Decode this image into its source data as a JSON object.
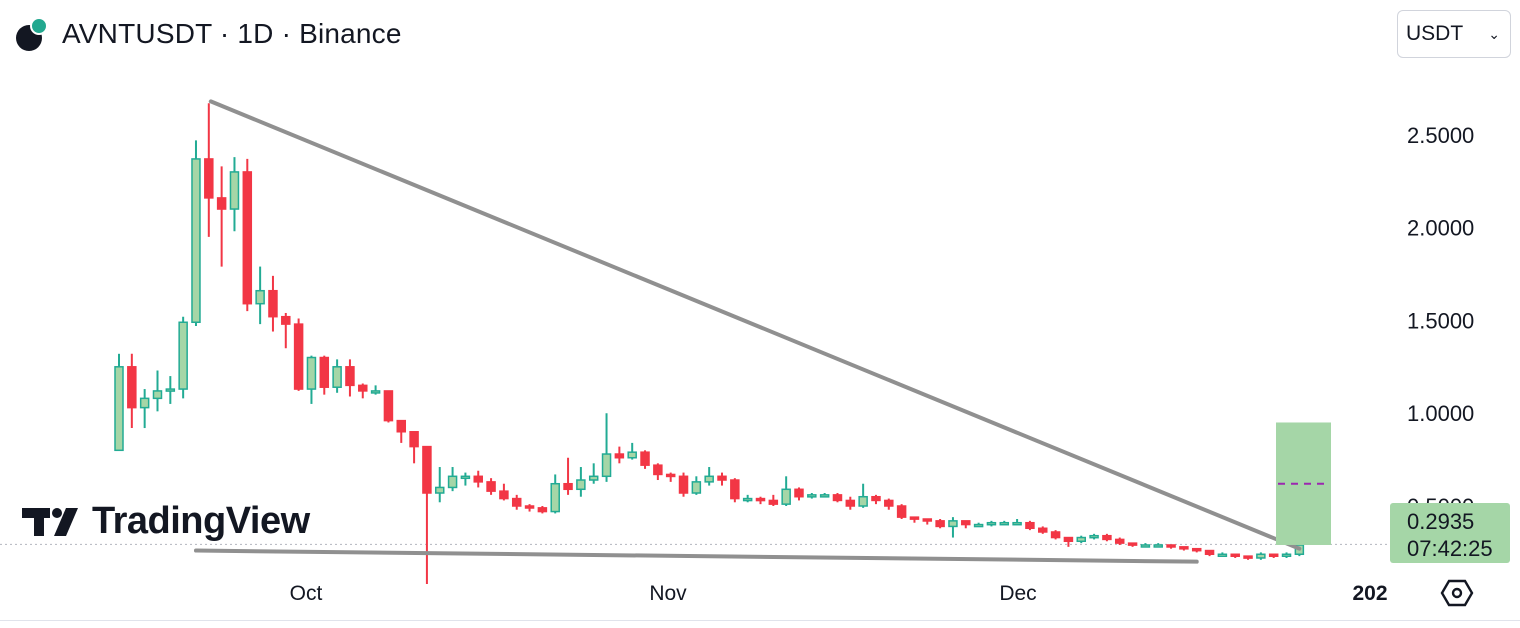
{
  "header": {
    "title": "AVNTUSDT · 1D · Binance",
    "currency": "USDT"
  },
  "branding": {
    "logo_text": "TradingView"
  },
  "price_badge": {
    "price": "0.2935",
    "countdown": "07:42:25"
  },
  "colors": {
    "up": "#22ab94",
    "up_fill": "#a5d6a7",
    "down": "#f23645",
    "trendline": "#909090"
  },
  "icons": {
    "settings": "gear-hex-icon",
    "dropdown": "chevron-down-icon"
  },
  "chart_data": {
    "type": "candlestick",
    "symbol": "AVNTUSDT",
    "interval": "1D",
    "exchange": "Binance",
    "y_ticks": [
      "2.5000",
      "2.0000",
      "1.5000",
      "1.0000",
      "0.5000"
    ],
    "x_ticks": [
      "Oct",
      "Nov",
      "Dec",
      "202"
    ],
    "ylim": [
      0,
      2.85
    ],
    "current_price": 0.2935,
    "candles": [
      [
        0.8,
        1.25,
        0.8,
        1.32
      ],
      [
        1.25,
        1.03,
        0.92,
        1.32
      ],
      [
        1.03,
        1.08,
        0.92,
        1.13
      ],
      [
        1.08,
        1.12,
        1.01,
        1.23
      ],
      [
        1.12,
        1.13,
        1.05,
        1.2
      ],
      [
        1.13,
        1.49,
        1.08,
        1.52
      ],
      [
        1.49,
        2.37,
        1.47,
        2.47
      ],
      [
        2.37,
        2.16,
        1.95,
        2.67
      ],
      [
        2.16,
        2.1,
        1.79,
        2.33
      ],
      [
        2.1,
        2.3,
        1.98,
        2.38
      ],
      [
        2.3,
        1.59,
        1.55,
        2.37
      ],
      [
        1.59,
        1.66,
        1.48,
        1.79
      ],
      [
        1.66,
        1.52,
        1.44,
        1.74
      ],
      [
        1.52,
        1.48,
        1.35,
        1.54
      ],
      [
        1.48,
        1.13,
        1.12,
        1.51
      ],
      [
        1.13,
        1.3,
        1.05,
        1.31
      ],
      [
        1.3,
        1.14,
        1.1,
        1.31
      ],
      [
        1.14,
        1.25,
        1.11,
        1.29
      ],
      [
        1.25,
        1.15,
        1.09,
        1.29
      ],
      [
        1.15,
        1.12,
        1.08,
        1.16
      ],
      [
        1.12,
        1.12,
        1.1,
        1.15
      ],
      [
        1.12,
        0.96,
        0.95,
        1.12
      ],
      [
        0.96,
        0.9,
        0.84,
        0.96
      ],
      [
        0.9,
        0.82,
        0.73,
        0.9
      ],
      [
        0.82,
        0.57,
        0.08,
        0.82
      ],
      [
        0.57,
        0.6,
        0.52,
        0.71
      ],
      [
        0.6,
        0.66,
        0.58,
        0.71
      ],
      [
        0.66,
        0.66,
        0.61,
        0.68
      ],
      [
        0.66,
        0.63,
        0.6,
        0.69
      ],
      [
        0.63,
        0.58,
        0.56,
        0.65
      ],
      [
        0.58,
        0.54,
        0.53,
        0.62
      ],
      [
        0.54,
        0.5,
        0.48,
        0.56
      ],
      [
        0.5,
        0.49,
        0.47,
        0.51
      ],
      [
        0.49,
        0.47,
        0.46,
        0.5
      ],
      [
        0.47,
        0.62,
        0.46,
        0.67
      ],
      [
        0.62,
        0.59,
        0.56,
        0.76
      ],
      [
        0.59,
        0.64,
        0.55,
        0.71
      ],
      [
        0.64,
        0.66,
        0.62,
        0.73
      ],
      [
        0.66,
        0.78,
        0.63,
        1.0
      ],
      [
        0.78,
        0.76,
        0.73,
        0.82
      ],
      [
        0.76,
        0.79,
        0.75,
        0.84
      ],
      [
        0.79,
        0.72,
        0.7,
        0.8
      ],
      [
        0.72,
        0.67,
        0.64,
        0.73
      ],
      [
        0.67,
        0.66,
        0.63,
        0.68
      ],
      [
        0.66,
        0.57,
        0.55,
        0.68
      ],
      [
        0.57,
        0.63,
        0.56,
        0.66
      ],
      [
        0.63,
        0.66,
        0.61,
        0.71
      ],
      [
        0.66,
        0.64,
        0.61,
        0.68
      ],
      [
        0.64,
        0.54,
        0.52,
        0.65
      ],
      [
        0.54,
        0.54,
        0.52,
        0.56
      ],
      [
        0.54,
        0.53,
        0.51,
        0.55
      ],
      [
        0.53,
        0.51,
        0.5,
        0.56
      ],
      [
        0.51,
        0.59,
        0.5,
        0.66
      ],
      [
        0.59,
        0.55,
        0.53,
        0.6
      ],
      [
        0.55,
        0.56,
        0.54,
        0.57
      ],
      [
        0.56,
        0.56,
        0.55,
        0.57
      ],
      [
        0.56,
        0.53,
        0.52,
        0.57
      ],
      [
        0.53,
        0.5,
        0.48,
        0.55
      ],
      [
        0.5,
        0.55,
        0.49,
        0.62
      ],
      [
        0.55,
        0.53,
        0.51,
        0.56
      ],
      [
        0.53,
        0.5,
        0.48,
        0.54
      ],
      [
        0.5,
        0.44,
        0.43,
        0.51
      ],
      [
        0.44,
        0.43,
        0.41,
        0.44
      ],
      [
        0.43,
        0.42,
        0.4,
        0.43
      ],
      [
        0.42,
        0.39,
        0.38,
        0.43
      ],
      [
        0.39,
        0.42,
        0.33,
        0.44
      ],
      [
        0.42,
        0.4,
        0.38,
        0.42
      ],
      [
        0.4,
        0.4,
        0.39,
        0.41
      ],
      [
        0.4,
        0.41,
        0.39,
        0.42
      ],
      [
        0.41,
        0.41,
        0.4,
        0.42
      ],
      [
        0.41,
        0.41,
        0.4,
        0.43
      ],
      [
        0.41,
        0.38,
        0.37,
        0.42
      ],
      [
        0.38,
        0.36,
        0.35,
        0.39
      ],
      [
        0.36,
        0.33,
        0.32,
        0.37
      ],
      [
        0.33,
        0.31,
        0.28,
        0.33
      ],
      [
        0.31,
        0.33,
        0.3,
        0.34
      ],
      [
        0.33,
        0.34,
        0.32,
        0.35
      ],
      [
        0.34,
        0.32,
        0.31,
        0.35
      ],
      [
        0.32,
        0.3,
        0.29,
        0.33
      ],
      [
        0.3,
        0.29,
        0.28,
        0.3
      ],
      [
        0.29,
        0.29,
        0.28,
        0.3
      ],
      [
        0.29,
        0.29,
        0.28,
        0.3
      ],
      [
        0.29,
        0.28,
        0.27,
        0.29
      ],
      [
        0.28,
        0.27,
        0.26,
        0.28
      ],
      [
        0.27,
        0.26,
        0.25,
        0.27
      ],
      [
        0.26,
        0.24,
        0.23,
        0.26
      ],
      [
        0.24,
        0.24,
        0.23,
        0.25
      ],
      [
        0.24,
        0.23,
        0.22,
        0.24
      ],
      [
        0.23,
        0.22,
        0.21,
        0.23
      ],
      [
        0.22,
        0.24,
        0.21,
        0.25
      ],
      [
        0.24,
        0.23,
        0.22,
        0.24
      ],
      [
        0.23,
        0.24,
        0.22,
        0.25
      ],
      [
        0.24,
        0.29,
        0.23,
        0.31
      ]
    ],
    "trendlines": [
      {
        "from": [
          7,
          2.68
        ],
        "to": [
          92,
          0.27
        ]
      },
      {
        "from": [
          6,
          0.26
        ],
        "to": [
          84,
          0.2
        ]
      }
    ],
    "projection_box": {
      "top": 0.95,
      "bottom": 0.29,
      "mid": 0.62
    }
  }
}
